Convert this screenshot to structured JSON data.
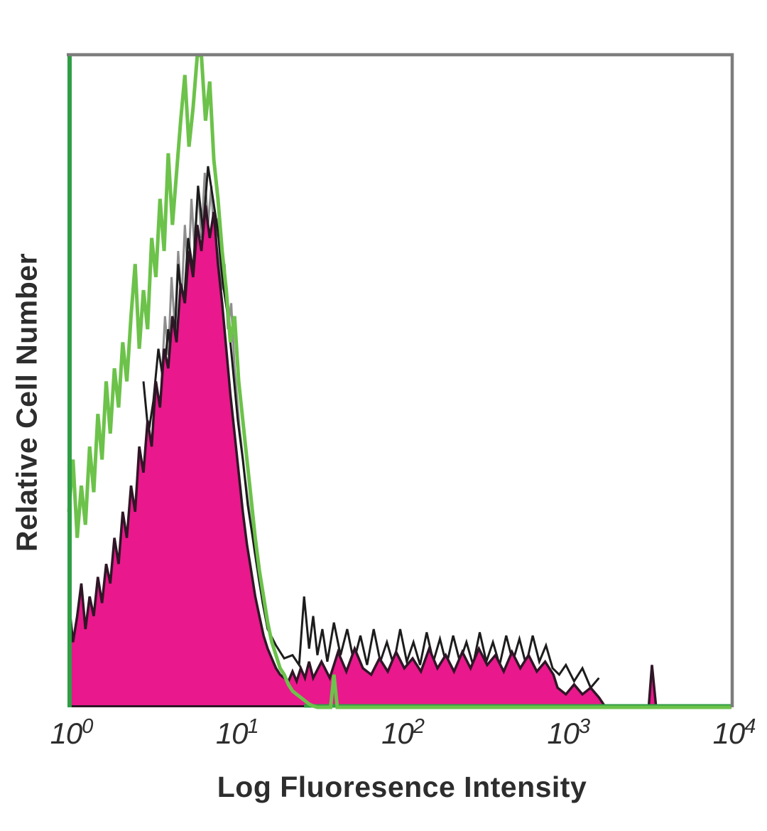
{
  "chart_data": {
    "type": "area",
    "subtype": "flow-cytometry-overlay-histogram",
    "title": "",
    "xlabel": "Log Fluoresence Intensity",
    "ylabel": "Relative Cell Number",
    "x_scale": "log10",
    "x_range_log": [
      0,
      4
    ],
    "ylim": [
      0,
      1
    ],
    "grid": false,
    "legend": "none",
    "x_ticks": [
      {
        "log": 0,
        "base": "10",
        "exp": "0"
      },
      {
        "log": 1,
        "base": "10",
        "exp": "1"
      },
      {
        "log": 2,
        "base": "10",
        "exp": "2"
      },
      {
        "log": 3,
        "base": "10",
        "exp": "3"
      },
      {
        "log": 4,
        "base": "10",
        "exp": "4"
      }
    ],
    "colors": {
      "control_green": "#6cc24a",
      "frame_green": "#2f9e44",
      "stained_magenta": "#e9188c",
      "dark_outline": "#2f1626",
      "gray_noise": "#8e8e8e",
      "black_noise": "#1c1c1c",
      "frame_gray": "#7d7d7d",
      "text": "#2d2d2d"
    },
    "series": [
      {
        "name": "gray-noise-spikes",
        "style": "line",
        "color": "#8e8e8e",
        "width": 3,
        "points": [
          [
            0.56,
            0.5
          ],
          [
            0.58,
            0.6
          ],
          [
            0.6,
            0.54
          ],
          [
            0.62,
            0.66
          ],
          [
            0.64,
            0.58
          ],
          [
            0.66,
            0.7
          ],
          [
            0.68,
            0.62
          ],
          [
            0.7,
            0.74
          ],
          [
            0.72,
            0.66
          ],
          [
            0.74,
            0.78
          ],
          [
            0.76,
            0.7
          ],
          [
            0.78,
            0.8
          ],
          [
            0.8,
            0.72
          ],
          [
            0.82,
            0.82
          ],
          [
            0.84,
            0.74
          ],
          [
            0.86,
            0.8
          ],
          [
            0.88,
            0.7
          ],
          [
            0.9,
            0.75
          ],
          [
            0.92,
            0.64
          ],
          [
            0.94,
            0.68
          ],
          [
            0.96,
            0.58
          ],
          [
            0.98,
            0.62
          ],
          [
            1.0,
            0.52
          ],
          [
            1.03,
            0.43
          ],
          [
            1.06,
            0.36
          ],
          [
            1.09,
            0.3
          ],
          [
            1.12,
            0.24
          ],
          [
            1.15,
            0.19
          ],
          [
            1.18,
            0.15
          ],
          [
            1.21,
            0.12
          ]
        ]
      },
      {
        "name": "black-noise-spikes",
        "style": "line",
        "color": "#1c1c1c",
        "width": 3,
        "points": [
          [
            0.45,
            0.5
          ],
          [
            0.48,
            0.42
          ],
          [
            0.51,
            0.47
          ],
          [
            0.54,
            0.55
          ],
          [
            0.57,
            0.5
          ],
          [
            0.6,
            0.58
          ],
          [
            0.63,
            0.52
          ],
          [
            0.66,
            0.68
          ],
          [
            0.69,
            0.6
          ],
          [
            0.72,
            0.72
          ],
          [
            0.75,
            0.67
          ],
          [
            0.78,
            0.8
          ],
          [
            0.81,
            0.73
          ],
          [
            0.84,
            0.83
          ],
          [
            0.87,
            0.78
          ],
          [
            0.9,
            0.73
          ],
          [
            0.93,
            0.65
          ],
          [
            0.96,
            0.6
          ],
          [
            0.99,
            0.52
          ],
          [
            1.02,
            0.44
          ],
          [
            1.05,
            0.38
          ],
          [
            1.08,
            0.31
          ],
          [
            1.11,
            0.26
          ],
          [
            1.14,
            0.21
          ],
          [
            1.17,
            0.16
          ],
          [
            1.2,
            0.12
          ],
          [
            1.25,
            0.095
          ],
          [
            1.3,
            0.075
          ],
          [
            1.35,
            0.08
          ],
          [
            1.39,
            0.065
          ],
          [
            1.42,
            0.17
          ],
          [
            1.45,
            0.09
          ],
          [
            1.475,
            0.14
          ],
          [
            1.5,
            0.08
          ],
          [
            1.53,
            0.12
          ],
          [
            1.56,
            0.07
          ],
          [
            1.6,
            0.13
          ],
          [
            1.64,
            0.08
          ],
          [
            1.68,
            0.12
          ],
          [
            1.72,
            0.07
          ],
          [
            1.76,
            0.11
          ],
          [
            1.8,
            0.065
          ],
          [
            1.84,
            0.12
          ],
          [
            1.88,
            0.07
          ],
          [
            1.92,
            0.1
          ],
          [
            1.96,
            0.065
          ],
          [
            2.0,
            0.12
          ],
          [
            2.04,
            0.07
          ],
          [
            2.08,
            0.1
          ],
          [
            2.12,
            0.065
          ],
          [
            2.16,
            0.115
          ],
          [
            2.2,
            0.07
          ],
          [
            2.24,
            0.105
          ],
          [
            2.28,
            0.065
          ],
          [
            2.32,
            0.11
          ],
          [
            2.36,
            0.07
          ],
          [
            2.4,
            0.1
          ],
          [
            2.44,
            0.065
          ],
          [
            2.48,
            0.115
          ],
          [
            2.52,
            0.07
          ],
          [
            2.56,
            0.1
          ],
          [
            2.6,
            0.065
          ],
          [
            2.64,
            0.11
          ],
          [
            2.68,
            0.07
          ],
          [
            2.72,
            0.105
          ],
          [
            2.76,
            0.065
          ],
          [
            2.8,
            0.11
          ],
          [
            2.84,
            0.07
          ],
          [
            2.88,
            0.095
          ],
          [
            2.92,
            0.06
          ],
          [
            2.96,
            0.05
          ],
          [
            3.0,
            0.065
          ],
          [
            3.05,
            0.04
          ],
          [
            3.1,
            0.06
          ],
          [
            3.15,
            0.03
          ],
          [
            3.2,
            0.045
          ]
        ]
      },
      {
        "name": "stained-filled-histogram",
        "style": "filled",
        "fill": "#e9188c",
        "stroke": "#2f1626",
        "width": 3.5,
        "dark_bottom_to": 1.42,
        "points": [
          [
            0,
            0.16
          ],
          [
            0.025,
            0.1
          ],
          [
            0.05,
            0.14
          ],
          [
            0.075,
            0.19
          ],
          [
            0.1,
            0.12
          ],
          [
            0.125,
            0.17
          ],
          [
            0.15,
            0.14
          ],
          [
            0.175,
            0.2
          ],
          [
            0.2,
            0.16
          ],
          [
            0.225,
            0.22
          ],
          [
            0.25,
            0.19
          ],
          [
            0.275,
            0.26
          ],
          [
            0.3,
            0.22
          ],
          [
            0.325,
            0.3
          ],
          [
            0.35,
            0.26
          ],
          [
            0.375,
            0.34
          ],
          [
            0.4,
            0.3
          ],
          [
            0.425,
            0.4
          ],
          [
            0.45,
            0.36
          ],
          [
            0.475,
            0.44
          ],
          [
            0.5,
            0.4
          ],
          [
            0.525,
            0.5
          ],
          [
            0.55,
            0.46
          ],
          [
            0.575,
            0.55
          ],
          [
            0.6,
            0.52
          ],
          [
            0.625,
            0.6
          ],
          [
            0.65,
            0.56
          ],
          [
            0.675,
            0.65
          ],
          [
            0.7,
            0.62
          ],
          [
            0.725,
            0.7
          ],
          [
            0.75,
            0.66
          ],
          [
            0.775,
            0.74
          ],
          [
            0.8,
            0.7
          ],
          [
            0.825,
            0.77
          ],
          [
            0.85,
            0.72
          ],
          [
            0.875,
            0.76
          ],
          [
            0.9,
            0.68
          ],
          [
            0.925,
            0.62
          ],
          [
            0.95,
            0.55
          ],
          [
            0.975,
            0.48
          ],
          [
            1.0,
            0.42
          ],
          [
            1.025,
            0.36
          ],
          [
            1.05,
            0.3
          ],
          [
            1.075,
            0.25
          ],
          [
            1.1,
            0.21
          ],
          [
            1.125,
            0.17
          ],
          [
            1.15,
            0.14
          ],
          [
            1.175,
            0.11
          ],
          [
            1.2,
            0.09
          ],
          [
            1.225,
            0.075
          ],
          [
            1.25,
            0.06
          ],
          [
            1.275,
            0.05
          ],
          [
            1.3,
            0.045
          ],
          [
            1.325,
            0.04
          ],
          [
            1.35,
            0.055
          ],
          [
            1.375,
            0.04
          ],
          [
            1.4,
            0.06
          ],
          [
            1.425,
            0.045
          ],
          [
            1.45,
            0.07
          ],
          [
            1.475,
            0.045
          ],
          [
            1.525,
            0.07
          ],
          [
            1.575,
            0.045
          ],
          [
            1.625,
            0.085
          ],
          [
            1.675,
            0.055
          ],
          [
            1.725,
            0.09
          ],
          [
            1.775,
            0.06
          ],
          [
            1.825,
            0.05
          ],
          [
            1.875,
            0.075
          ],
          [
            1.925,
            0.055
          ],
          [
            1.975,
            0.085
          ],
          [
            2.025,
            0.06
          ],
          [
            2.075,
            0.075
          ],
          [
            2.125,
            0.055
          ],
          [
            2.175,
            0.09
          ],
          [
            2.225,
            0.06
          ],
          [
            2.275,
            0.08
          ],
          [
            2.325,
            0.055
          ],
          [
            2.375,
            0.085
          ],
          [
            2.425,
            0.06
          ],
          [
            2.475,
            0.09
          ],
          [
            2.525,
            0.065
          ],
          [
            2.575,
            0.08
          ],
          [
            2.625,
            0.055
          ],
          [
            2.675,
            0.085
          ],
          [
            2.725,
            0.06
          ],
          [
            2.775,
            0.08
          ],
          [
            2.825,
            0.055
          ],
          [
            2.875,
            0.07
          ],
          [
            2.925,
            0.05
          ],
          [
            2.95,
            0.03
          ],
          [
            3.0,
            0.02
          ],
          [
            3.05,
            0.035
          ],
          [
            3.1,
            0.02
          ],
          [
            3.15,
            0.03
          ],
          [
            3.2,
            0.015
          ],
          [
            3.24,
            0
          ],
          [
            3.5,
            0
          ],
          [
            3.52,
            0.065
          ],
          [
            3.545,
            0
          ],
          [
            4,
            0
          ]
        ]
      },
      {
        "name": "control-open-histogram",
        "style": "line",
        "color": "#6cc24a",
        "width": 5,
        "points": [
          [
            0,
            0.3
          ],
          [
            0.025,
            0.38
          ],
          [
            0.05,
            0.26
          ],
          [
            0.075,
            0.34
          ],
          [
            0.1,
            0.28
          ],
          [
            0.125,
            0.4
          ],
          [
            0.15,
            0.33
          ],
          [
            0.175,
            0.45
          ],
          [
            0.2,
            0.38
          ],
          [
            0.225,
            0.5
          ],
          [
            0.25,
            0.42
          ],
          [
            0.275,
            0.52
          ],
          [
            0.3,
            0.46
          ],
          [
            0.325,
            0.56
          ],
          [
            0.35,
            0.5
          ],
          [
            0.375,
            0.6
          ],
          [
            0.4,
            0.68
          ],
          [
            0.425,
            0.55
          ],
          [
            0.45,
            0.64
          ],
          [
            0.475,
            0.58
          ],
          [
            0.5,
            0.72
          ],
          [
            0.525,
            0.66
          ],
          [
            0.55,
            0.78
          ],
          [
            0.575,
            0.7
          ],
          [
            0.6,
            0.85
          ],
          [
            0.625,
            0.74
          ],
          [
            0.65,
            0.82
          ],
          [
            0.675,
            0.9
          ],
          [
            0.7,
            0.97
          ],
          [
            0.725,
            0.86
          ],
          [
            0.75,
            0.92
          ],
          [
            0.775,
            1.0
          ],
          [
            0.8,
            1.0
          ],
          [
            0.825,
            0.9
          ],
          [
            0.85,
            0.96
          ],
          [
            0.875,
            0.84
          ],
          [
            0.9,
            0.78
          ],
          [
            0.925,
            0.7
          ],
          [
            0.95,
            0.64
          ],
          [
            0.975,
            0.56
          ],
          [
            1.0,
            0.6
          ],
          [
            1.025,
            0.5
          ],
          [
            1.05,
            0.44
          ],
          [
            1.075,
            0.38
          ],
          [
            1.1,
            0.32
          ],
          [
            1.125,
            0.26
          ],
          [
            1.15,
            0.21
          ],
          [
            1.175,
            0.17
          ],
          [
            1.2,
            0.13
          ],
          [
            1.225,
            0.1
          ],
          [
            1.25,
            0.08
          ],
          [
            1.275,
            0.06
          ],
          [
            1.3,
            0.05
          ],
          [
            1.325,
            0.035
          ],
          [
            1.35,
            0.025
          ],
          [
            1.375,
            0.02
          ],
          [
            1.4,
            0.015
          ],
          [
            1.425,
            0.01
          ],
          [
            1.45,
            0.005
          ],
          [
            1.475,
            0.002
          ],
          [
            1.5,
            0
          ],
          [
            1.58,
            0
          ],
          [
            1.6,
            0.05
          ],
          [
            1.62,
            0
          ],
          [
            4,
            0
          ]
        ]
      }
    ],
    "frame": {
      "top_color": "#7d7d7d",
      "right_color": "#7d7d7d",
      "left_color": "#2f9e44",
      "bottom_color": "#2f9e44",
      "gray_width": 4.5,
      "green_width": 6
    }
  }
}
